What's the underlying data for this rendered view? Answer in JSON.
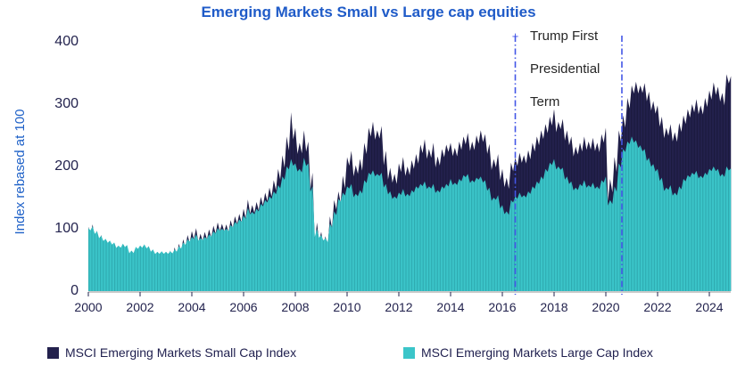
{
  "chart_data": {
    "type": "area",
    "title": "Emerging Markets Small vs Large cap equities",
    "ylabel": "Index rebased at 100",
    "xlabel": "",
    "x_start_year": 2000,
    "x_step_years": 0.1667,
    "ylim": [
      0,
      400
    ],
    "yticks": [
      0,
      100,
      200,
      300,
      400
    ],
    "xticks": [
      2000,
      2002,
      2004,
      2006,
      2008,
      2010,
      2012,
      2014,
      2016,
      2018,
      2020,
      2022,
      2024
    ],
    "grid": false,
    "legend_position": "bottom",
    "series": [
      {
        "name": "MSCI Emerging Markets Small Cap Index",
        "color": "#23214D",
        "values": [
          103,
          107,
          97,
          90,
          84,
          80,
          76,
          70,
          74,
          72,
          62,
          68,
          71,
          75,
          72,
          66,
          62,
          64,
          63,
          65,
          70,
          76,
          83,
          90,
          96,
          101,
          92,
          95,
          99,
          105,
          110,
          108,
          107,
          114,
          120,
          124,
          132,
          147,
          138,
          143,
          151,
          158,
          166,
          178,
          196,
          218,
          248,
          287,
          262,
          238,
          258,
          240,
          190,
          110,
          95,
          88,
          120,
          146,
          160,
          185,
          215,
          225,
          202,
          212,
          238,
          262,
          272,
          258,
          265,
          225,
          198,
          188,
          205,
          215,
          200,
          210,
          220,
          235,
          244,
          228,
          238,
          216,
          228,
          235,
          238,
          230,
          240,
          248,
          254,
          240,
          250,
          258,
          252,
          236,
          212,
          220,
          196,
          182,
          206,
          214,
          222,
          218,
          226,
          238,
          248,
          258,
          268,
          280,
          292,
          272,
          276,
          258,
          248,
          232,
          238,
          248,
          240,
          246,
          238,
          252,
          262,
          180,
          215,
          258,
          282,
          310,
          330,
          336,
          330,
          334,
          320,
          305,
          298,
          280,
          262,
          268,
          255,
          270,
          282,
          292,
          300,
          308,
          298,
          310,
          322,
          335,
          328,
          318,
          348,
          345
        ]
      },
      {
        "name": "MSCI Emerging Markets Large Cap Index",
        "color": "#3BC5C9",
        "values": [
          101,
          104,
          96,
          89,
          84,
          81,
          78,
          73,
          76,
          74,
          65,
          71,
          73,
          75,
          72,
          67,
          63,
          64,
          63,
          64,
          67,
          72,
          78,
          83,
          87,
          91,
          85,
          87,
          91,
          96,
          101,
          100,
          100,
          106,
          111,
          115,
          121,
          133,
          127,
          132,
          140,
          146,
          152,
          160,
          170,
          184,
          200,
          212,
          205,
          196,
          214,
          205,
          168,
          100,
          90,
          85,
          108,
          128,
          148,
          158,
          168,
          172,
          156,
          162,
          178,
          190,
          194,
          188,
          190,
          172,
          160,
          152,
          158,
          164,
          156,
          162,
          168,
          172,
          176,
          168,
          172,
          162,
          168,
          172,
          180,
          174,
          180,
          186,
          188,
          178,
          182,
          184,
          178,
          166,
          150,
          154,
          138,
          128,
          146,
          152,
          158,
          154,
          160,
          168,
          176,
          184,
          196,
          206,
          212,
          200,
          198,
          184,
          176,
          166,
          172,
          178,
          170,
          174,
          168,
          178,
          184,
          146,
          168,
          205,
          228,
          240,
          248,
          242,
          234,
          228,
          214,
          204,
          196,
          182,
          166,
          170,
          158,
          168,
          180,
          186,
          190,
          193,
          185,
          190,
          196,
          200,
          196,
          188,
          200,
          197
        ]
      }
    ],
    "vlines": [
      {
        "x_year": 2016.5
      },
      {
        "x_year": 2020.62
      }
    ],
    "vline_color": "#4356E6",
    "annotation": {
      "marker": "+",
      "lines": [
        "Trump First",
        "Presidential",
        "Term"
      ]
    },
    "colors": {
      "title": "#1F5BC8",
      "axis_label": "#2062C8",
      "tick_labels": "#23234E",
      "legend_text": "#1F1F4E",
      "axis_line": "#ABABAB",
      "small_cap_fill": "#23214D",
      "large_cap_fill": "#3BC5C9"
    }
  }
}
